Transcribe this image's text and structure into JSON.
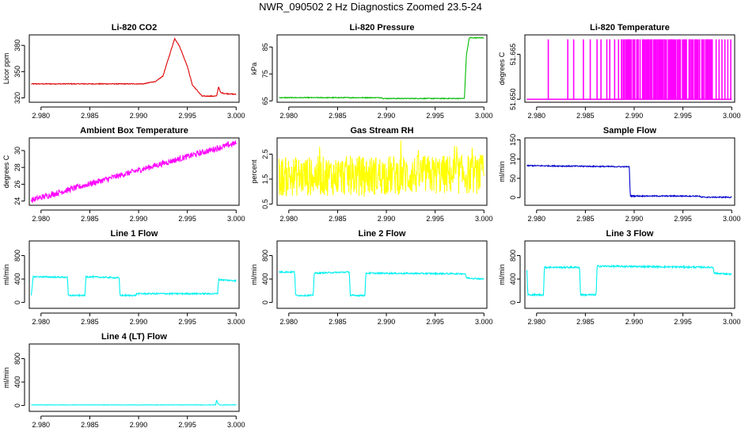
{
  "title": "NWR_090502  2 Hz Diagnostics Zoomed 23.5-24",
  "colors": {
    "red": "#dd0000",
    "green": "#00bb00",
    "magenta": "#ff00ff",
    "yellow": "#ffff00",
    "blue": "#0000cc",
    "cyan": "#00f0f0"
  },
  "chart_data": [
    {
      "type": "line",
      "title": "Li-820 CO2",
      "ylabel": "Licor ppm",
      "color": "red",
      "xlim": [
        2.9788,
        3.0003
      ],
      "ylim": [
        315,
        392
      ],
      "xticks": [
        2.98,
        2.985,
        2.99,
        2.995,
        3.0
      ],
      "xtick_labels": [
        "2.980",
        "2.985",
        "2.990",
        "2.995",
        "3.000"
      ],
      "yticks": [
        320,
        350,
        380
      ],
      "ytick_labels": [
        "320",
        "350",
        "380"
      ],
      "series": [
        {
          "name": "CO2",
          "x": [
            2.979,
            2.985,
            2.9905,
            2.9918,
            2.9925,
            2.9932,
            2.9937,
            2.9942,
            2.995,
            2.9955,
            2.9965,
            2.998,
            2.9982,
            2.9984,
            2.9988,
            3.0
          ],
          "y": [
            336,
            336,
            336,
            339,
            345,
            370,
            388,
            379,
            356,
            335,
            322,
            322,
            333,
            326,
            325,
            324
          ]
        }
      ]
    },
    {
      "type": "line",
      "title": "Li-820 Pressure",
      "ylabel": "kPa",
      "color": "green",
      "xlim": [
        2.9788,
        3.0003
      ],
      "ylim": [
        64.5,
        89.5
      ],
      "xticks": [
        2.98,
        2.985,
        2.99,
        2.995,
        3.0
      ],
      "xtick_labels": [
        "2.980",
        "2.985",
        "2.990",
        "2.995",
        "3.000"
      ],
      "yticks": [
        65,
        75,
        85
      ],
      "ytick_labels": [
        "65",
        "75",
        "85"
      ],
      "series": [
        {
          "name": "Pressure",
          "x": [
            2.979,
            2.9895,
            2.9897,
            2.998,
            2.9982,
            2.9985,
            3.0
          ],
          "y": [
            66.2,
            66.2,
            65.9,
            65.9,
            82,
            88.4,
            88.4
          ]
        }
      ]
    },
    {
      "type": "line",
      "title": "Li-820 Temperature",
      "ylabel": "degrees C",
      "color": "magenta",
      "xlim": [
        2.9788,
        3.0003
      ],
      "ylim": [
        51.649,
        51.6715
      ],
      "xticks": [
        2.98,
        2.985,
        2.99,
        2.995,
        3.0
      ],
      "xtick_labels": [
        "2.980",
        "2.985",
        "2.990",
        "2.995",
        "3.000"
      ],
      "yticks": [
        51.65,
        51.665
      ],
      "ytick_labels": [
        "51.650",
        "51.665"
      ],
      "low": 51.65,
      "high": 51.67,
      "spikes": [
        2.9812,
        2.9832,
        2.9838,
        2.9848,
        2.9855,
        2.9862,
        2.9866,
        2.9872,
        2.9875,
        2.988,
        2.9884,
        2.9887,
        2.989,
        2.9893,
        2.9896,
        2.99,
        2.9903,
        2.9906,
        2.991,
        2.9913,
        2.9917,
        2.992,
        2.9924,
        2.9928,
        2.9931,
        2.9935,
        2.9939,
        2.9942,
        2.9946,
        2.995,
        2.9953,
        2.9957,
        2.996,
        2.9963,
        2.9967,
        2.997,
        2.9974,
        2.9977,
        2.998,
        2.9984,
        2.9987,
        2.999,
        2.9993,
        2.9996,
        2.9999
      ]
    },
    {
      "type": "line",
      "title": "Ambient Box Temperature",
      "ylabel": "degrees C",
      "color": "magenta",
      "xlim": [
        2.9788,
        3.0003
      ],
      "ylim": [
        23.5,
        31.5
      ],
      "xticks": [
        2.98,
        2.985,
        2.99,
        2.995,
        3.0
      ],
      "xtick_labels": [
        "2.980",
        "2.985",
        "2.990",
        "2.995",
        "3.000"
      ],
      "yticks": [
        24,
        26,
        28,
        30
      ],
      "ytick_labels": [
        "24",
        "26",
        "28",
        "30"
      ],
      "series": [
        {
          "name": "Box T",
          "x": [
            2.979,
            3.0
          ],
          "y": [
            24.1,
            30.9
          ]
        }
      ],
      "noise": 0.35
    },
    {
      "type": "line",
      "title": "Gas Stream RH",
      "ylabel": "percent",
      "color": "yellow",
      "xlim": [
        2.9788,
        3.0003
      ],
      "ylim": [
        0.45,
        3.15
      ],
      "xticks": [
        2.98,
        2.985,
        2.99,
        2.995,
        3.0
      ],
      "xtick_labels": [
        "2.980",
        "2.985",
        "2.990",
        "2.995",
        "3.000"
      ],
      "yticks": [
        0.5,
        1.5,
        2.5
      ],
      "ytick_labels": [
        "0.5",
        "1.5",
        "2.5"
      ],
      "series": [
        {
          "name": "RH",
          "x": [
            2.979,
            3.0
          ],
          "y": [
            1.6,
            1.7
          ]
        }
      ],
      "noise": 0.8
    },
    {
      "type": "line",
      "title": "Sample Flow",
      "ylabel": "ml/min",
      "color": "blue",
      "xlim": [
        2.9788,
        3.0003
      ],
      "ylim": [
        -20,
        155
      ],
      "xticks": [
        2.98,
        2.985,
        2.99,
        2.995,
        3.0
      ],
      "xtick_labels": [
        "2.980",
        "2.985",
        "2.990",
        "2.995",
        "3.000"
      ],
      "yticks": [
        0,
        50,
        100,
        150
      ],
      "ytick_labels": [
        "0",
        "50",
        "100",
        "150"
      ],
      "series": [
        {
          "name": "Sample",
          "x": [
            2.979,
            2.9895,
            2.9896,
            2.9967,
            2.9968,
            3.0
          ],
          "y": [
            83,
            80,
            4,
            4,
            1,
            1
          ]
        }
      ],
      "noise": 1.5
    },
    {
      "type": "line",
      "title": "Line 1 Flow",
      "ylabel": "ml/min",
      "color": "cyan",
      "xlim": [
        2.9788,
        3.0003
      ],
      "ylim": [
        -100,
        1050
      ],
      "xticks": [
        2.98,
        2.985,
        2.99,
        2.995,
        3.0
      ],
      "xtick_labels": [
        "2.980",
        "2.985",
        "2.990",
        "2.995",
        "3.000"
      ],
      "yticks": [
        0,
        400,
        800
      ],
      "ytick_labels": [
        "0",
        "400",
        "800"
      ],
      "series": [
        {
          "name": "Line 1",
          "x": [
            2.979,
            2.9792,
            2.9827,
            2.9828,
            2.9845,
            2.9846,
            2.988,
            2.9881,
            2.9897,
            2.9898,
            2.9981,
            2.9982,
            3.0
          ],
          "y": [
            120,
            440,
            430,
            120,
            120,
            440,
            420,
            120,
            120,
            150,
            150,
            390,
            370
          ]
        }
      ],
      "noise": 12
    },
    {
      "type": "line",
      "title": "Line 2 Flow",
      "ylabel": "ml/min",
      "color": "cyan",
      "xlim": [
        2.9788,
        3.0003
      ],
      "ylim": [
        -100,
        1050
      ],
      "xticks": [
        2.98,
        2.985,
        2.99,
        2.995,
        3.0
      ],
      "xtick_labels": [
        "2.980",
        "2.985",
        "2.990",
        "2.995",
        "3.000"
      ],
      "yticks": [
        0,
        400,
        800
      ],
      "ytick_labels": [
        "0",
        "400",
        "800"
      ],
      "series": [
        {
          "name": "Line 2",
          "x": [
            2.979,
            2.9806,
            2.9807,
            2.9825,
            2.9826,
            2.9862,
            2.9863,
            2.9878,
            2.9879,
            2.9981,
            2.9982,
            3.0
          ],
          "y": [
            520,
            520,
            120,
            120,
            500,
            520,
            120,
            120,
            500,
            490,
            420,
            400
          ]
        }
      ],
      "noise": 12
    },
    {
      "type": "line",
      "title": "Line 3 Flow",
      "ylabel": "ml/min",
      "color": "cyan",
      "xlim": [
        2.9788,
        3.0003
      ],
      "ylim": [
        -100,
        1050
      ],
      "xticks": [
        2.98,
        2.985,
        2.99,
        2.995,
        3.0
      ],
      "xtick_labels": [
        "2.980",
        "2.985",
        "2.990",
        "2.995",
        "3.000"
      ],
      "yticks": [
        0,
        400,
        800
      ],
      "ytick_labels": [
        "0",
        "400",
        "800"
      ],
      "series": [
        {
          "name": "Line 3",
          "x": [
            2.979,
            2.9791,
            2.9792,
            2.9807,
            2.9808,
            2.9844,
            2.9845,
            2.9861,
            2.9862,
            2.9981,
            2.9982,
            3.0
          ],
          "y": [
            560,
            130,
            130,
            130,
            600,
            600,
            130,
            130,
            620,
            600,
            500,
            480
          ]
        }
      ],
      "noise": 14
    },
    {
      "type": "line",
      "title": "Line 4 (LT) Flow",
      "ylabel": "ml/min",
      "color": "cyan",
      "xlim": [
        2.9788,
        3.0003
      ],
      "ylim": [
        -100,
        1050
      ],
      "xticks": [
        2.98,
        2.985,
        2.99,
        2.995,
        3.0
      ],
      "xtick_labels": [
        "2.980",
        "2.985",
        "2.990",
        "2.995",
        "3.000"
      ],
      "yticks": [
        0,
        400,
        800
      ],
      "ytick_labels": [
        "0",
        "400",
        "800"
      ],
      "series": [
        {
          "name": "Line 4",
          "x": [
            2.979,
            2.9979,
            2.998,
            2.9981,
            2.9983,
            3.0
          ],
          "y": [
            10,
            10,
            100,
            40,
            10,
            10
          ]
        }
      ],
      "noise": 3
    }
  ]
}
